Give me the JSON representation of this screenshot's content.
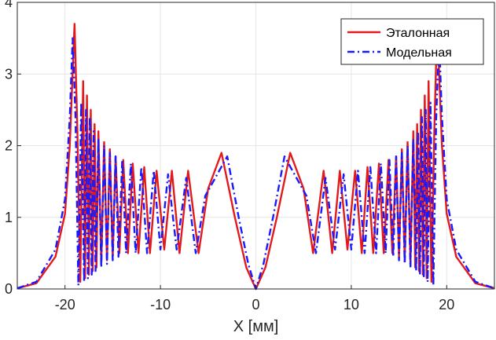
{
  "chart_data": {
    "type": "line",
    "title": "",
    "xlabel": "X [мм]",
    "ylabel": "",
    "xlim": [
      -25,
      25
    ],
    "ylim": [
      0,
      4
    ],
    "grid": true,
    "legend_position": "top-right",
    "xticks": [
      -20,
      -10,
      0,
      10,
      20
    ],
    "xtick_labels": [
      "-20",
      "-10",
      "0",
      "10",
      "20"
    ],
    "yticks": [
      0,
      1,
      2,
      3,
      4
    ],
    "ytick_labels": [
      "0",
      "1",
      "2",
      "3",
      "4"
    ],
    "series": [
      {
        "name": "Эталонная",
        "color": "#e31a1c",
        "style": "solid",
        "x": [
          -25,
          -23,
          -21,
          -20,
          -19.5,
          -19.0,
          -18.7,
          -18.4,
          -18.1,
          -17.9,
          -17.7,
          -17.5,
          -17.3,
          -17.1,
          -16.9,
          -16.7,
          -16.5,
          -16.2,
          -15.9,
          -15.6,
          -15.3,
          -15.0,
          -14.7,
          -14.3,
          -13.9,
          -13.4,
          -12.9,
          -12.3,
          -11.7,
          -11.1,
          -10.4,
          -9.6,
          -8.8,
          -8.0,
          -7.1,
          -6.0,
          -5.0,
          -3.6,
          -2.2,
          -1.0,
          0,
          1.0,
          2.2,
          3.6,
          5.0,
          6.0,
          7.1,
          8.0,
          8.8,
          9.6,
          10.4,
          11.1,
          11.7,
          12.3,
          12.9,
          13.4,
          13.9,
          14.3,
          14.7,
          15.0,
          15.3,
          15.6,
          15.9,
          16.2,
          16.5,
          16.7,
          16.9,
          17.1,
          17.3,
          17.5,
          17.7,
          17.9,
          18.1,
          18.4,
          18.7,
          19.0,
          19.5,
          20,
          21,
          23,
          25
        ],
        "y": [
          0.01,
          0.08,
          0.45,
          1.05,
          2.0,
          3.7,
          2.2,
          0.1,
          2.9,
          0.15,
          2.7,
          0.2,
          2.5,
          0.25,
          2.3,
          0.3,
          2.2,
          0.35,
          2.05,
          0.4,
          1.95,
          0.45,
          1.85,
          0.5,
          1.8,
          0.5,
          1.75,
          0.5,
          1.7,
          0.5,
          1.65,
          0.55,
          1.65,
          0.5,
          1.65,
          0.5,
          1.4,
          1.9,
          1.0,
          0.3,
          0.0,
          0.3,
          1.0,
          1.9,
          1.4,
          0.5,
          1.65,
          0.5,
          1.65,
          0.55,
          1.65,
          0.5,
          1.7,
          0.5,
          1.75,
          0.5,
          1.8,
          0.5,
          1.85,
          0.45,
          1.95,
          0.4,
          2.05,
          0.35,
          2.2,
          0.3,
          2.3,
          0.25,
          2.5,
          0.2,
          2.7,
          0.15,
          2.9,
          0.1,
          2.2,
          3.7,
          2.0,
          1.05,
          0.45,
          0.08,
          0.01
        ]
      },
      {
        "name": "Модельная",
        "color": "#1a1aff",
        "style": "dashdot",
        "x": [
          -25,
          -23,
          -21,
          -20,
          -19.5,
          -19.2,
          -18.9,
          -18.6,
          -18.3,
          -18.0,
          -17.8,
          -17.6,
          -17.4,
          -17.2,
          -17.0,
          -16.8,
          -16.5,
          -16.2,
          -15.9,
          -15.6,
          -15.3,
          -15.0,
          -14.7,
          -14.4,
          -14.0,
          -13.6,
          -13.1,
          -12.6,
          -12.0,
          -11.4,
          -10.7,
          -10.0,
          -9.2,
          -8.3,
          -7.3,
          -6.3,
          -5.3,
          -3.0,
          -1.8,
          -0.8,
          0,
          0.8,
          1.8,
          3.0,
          5.3,
          6.3,
          7.3,
          8.3,
          9.2,
          10.0,
          10.7,
          11.4,
          12.0,
          12.6,
          13.1,
          13.6,
          14.0,
          14.4,
          14.7,
          15.0,
          15.3,
          15.6,
          15.9,
          16.2,
          16.5,
          16.8,
          17.0,
          17.2,
          17.4,
          17.6,
          17.8,
          18.0,
          18.3,
          18.6,
          18.9,
          19.2,
          19.5,
          20,
          21,
          23,
          25
        ],
        "y": [
          0.01,
          0.1,
          0.55,
          1.25,
          2.4,
          3.5,
          2.4,
          0.05,
          2.6,
          0.1,
          2.5,
          0.15,
          2.4,
          0.2,
          2.2,
          0.25,
          2.1,
          0.3,
          2.0,
          0.35,
          1.9,
          0.4,
          1.85,
          0.45,
          1.8,
          0.5,
          1.75,
          0.5,
          1.7,
          0.5,
          1.65,
          0.55,
          1.6,
          0.55,
          1.55,
          0.5,
          1.3,
          1.85,
          1.0,
          0.35,
          0.0,
          0.35,
          1.0,
          1.85,
          1.3,
          0.5,
          1.55,
          0.55,
          1.6,
          0.55,
          1.65,
          0.5,
          1.7,
          0.5,
          1.75,
          0.5,
          1.8,
          0.45,
          1.85,
          0.4,
          1.9,
          0.35,
          2.0,
          0.3,
          2.1,
          0.25,
          2.2,
          0.2,
          2.4,
          0.15,
          2.5,
          0.1,
          2.6,
          0.05,
          2.4,
          3.5,
          2.4,
          1.25,
          0.55,
          0.1,
          0.01
        ]
      }
    ]
  }
}
